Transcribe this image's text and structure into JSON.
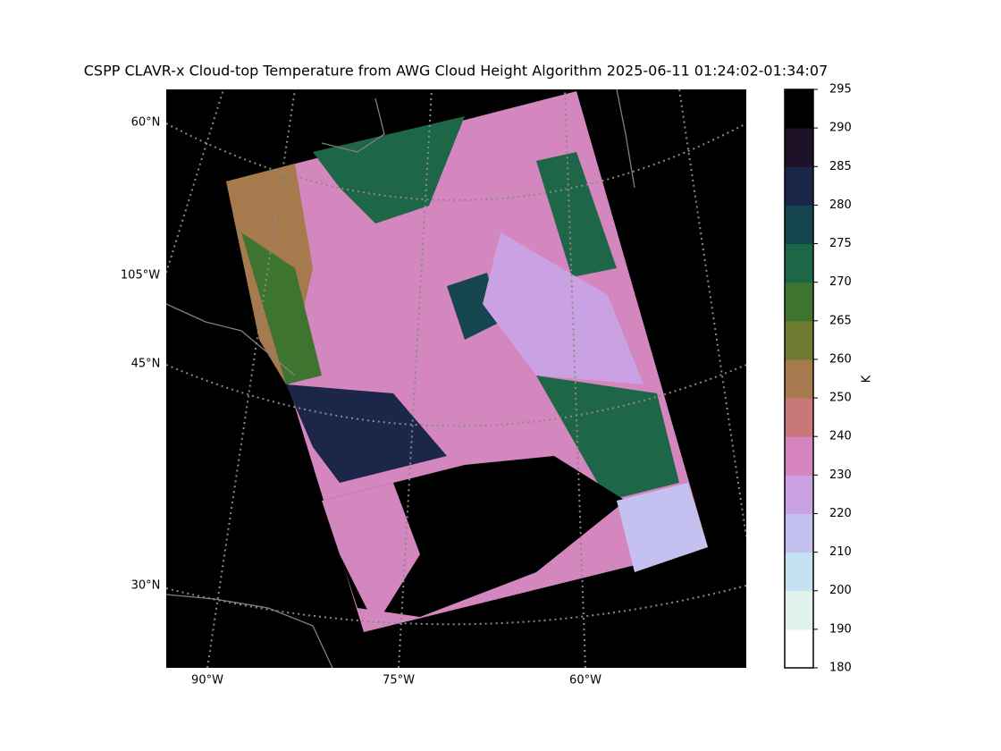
{
  "title": "CSPP CLAVR-x Cloud-top Temperature from AWG Cloud Height Algorithm 2025-06-11 01:24:02-01:34:07",
  "map": {
    "lat_labels": [
      "60°N",
      "105°W",
      "45°N",
      "30°N"
    ],
    "lon_labels": [
      "90°W",
      "75°W",
      "60°W"
    ]
  },
  "colorbar": {
    "label": "K",
    "ticks": [
      180,
      190,
      200,
      210,
      220,
      230,
      240,
      250,
      260,
      265,
      270,
      275,
      280,
      285,
      290,
      295
    ],
    "colors": [
      "#ffffff",
      "#dff3ec",
      "#c6e1f1",
      "#c4c1f1",
      "#caa2e3",
      "#d584bd",
      "#c87878",
      "#a67a4c",
      "#6e7a30",
      "#3e7430",
      "#1e6648",
      "#154650",
      "#1c2648",
      "#1e1228",
      "#000000"
    ]
  }
}
